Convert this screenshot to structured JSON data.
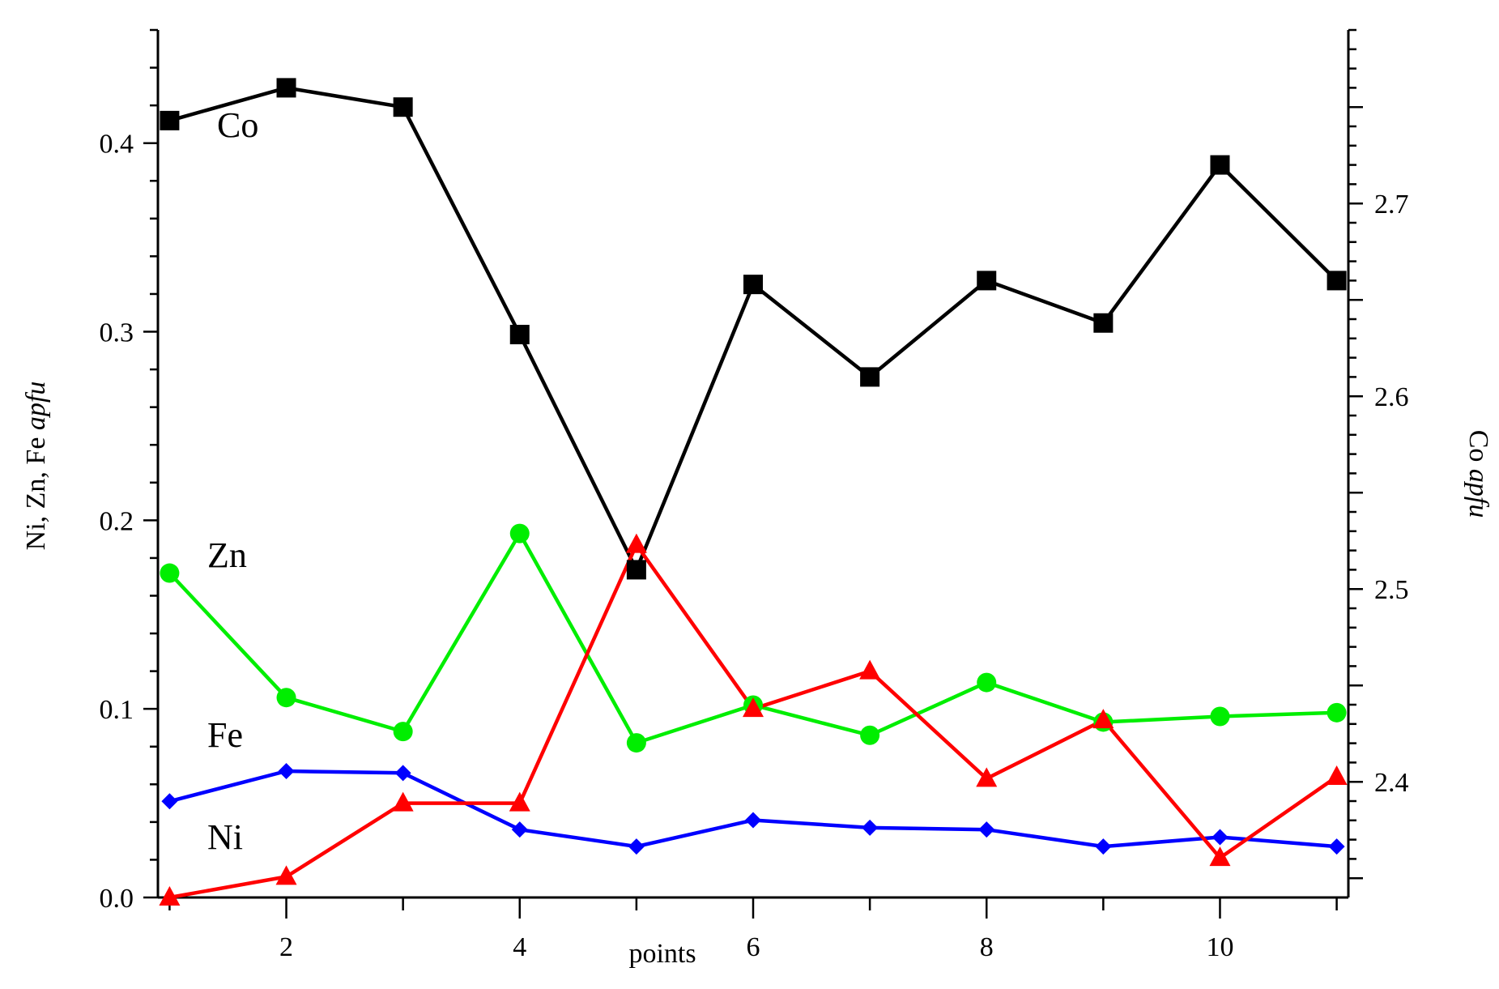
{
  "chart_data": {
    "type": "line",
    "xlabel": "points",
    "ylabel_left": "Ni, Zn, Fe",
    "ylabel_left_italic": "apfu",
    "ylabel_right": "Co",
    "ylabel_right_italic": "apfu",
    "x": [
      1,
      2,
      3,
      4,
      5,
      6,
      7,
      8,
      9,
      10,
      11
    ],
    "xlim": [
      0.9,
      11.1
    ],
    "xticks": [
      2,
      4,
      6,
      8,
      10
    ],
    "ylim_left": [
      0,
      0.46
    ],
    "yticks_left": [
      "0.0",
      "0.1",
      "0.2",
      "0.3",
      "0.4"
    ],
    "ylim_right": [
      2.34,
      2.79
    ],
    "yticks_right": [
      "2.4",
      "2.5",
      "2.6",
      "2.7"
    ],
    "grid": false,
    "series": [
      {
        "name": "Co",
        "axis": "right",
        "marker": "square",
        "color": "#000000",
        "values": [
          2.743,
          2.76,
          2.75,
          2.632,
          2.51,
          2.658,
          2.61,
          2.66,
          2.638,
          2.72,
          2.66
        ]
      },
      {
        "name": "Zn",
        "axis": "left",
        "marker": "circle",
        "color": "#00ee00",
        "values": [
          0.172,
          0.106,
          0.088,
          0.193,
          0.082,
          0.102,
          0.086,
          0.114,
          0.093,
          0.096,
          0.098
        ]
      },
      {
        "name": "Fe",
        "axis": "left",
        "marker": "diamond",
        "color": "#0000ff",
        "values": [
          0.051,
          0.067,
          0.066,
          0.036,
          0.027,
          0.041,
          0.037,
          0.036,
          0.027,
          0.032,
          0.027
        ]
      },
      {
        "name": "Ni",
        "axis": "left",
        "marker": "triangle",
        "color": "#ff0000",
        "values": [
          0.0,
          0.011,
          0.05,
          0.05,
          0.187,
          0.1,
          0.12,
          0.063,
          0.094,
          0.021,
          0.064
        ]
      }
    ]
  }
}
